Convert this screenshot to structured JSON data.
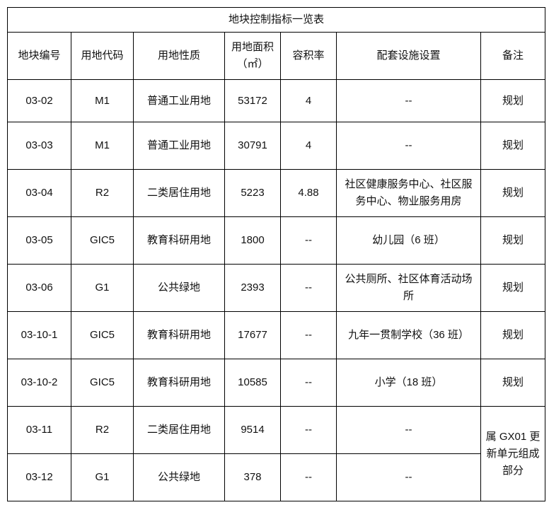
{
  "title": "地块控制指标一览表",
  "headers": [
    "地块编号",
    "用地代码",
    "用地性质",
    "用地面积",
    "（㎡）",
    "容积率",
    "配套设施设置",
    "备注"
  ],
  "rows": [
    {
      "id": "03-02",
      "code": "M1",
      "nature": "普通工业用地",
      "area": "53172",
      "far": "4",
      "facilities": "--",
      "note": "规划"
    },
    {
      "id": "03-03",
      "code": "M1",
      "nature": "普通工业用地",
      "area": "30791",
      "far": "4",
      "facilities": "--",
      "note": "规划"
    },
    {
      "id": "03-04",
      "code": "R2",
      "nature": "二类居住用地",
      "area": "5223",
      "far": "4.88",
      "facilities": "社区健康服务中心、社区服务中心、物业服务用房",
      "note": "规划"
    },
    {
      "id": "03-05",
      "code": "GIC5",
      "nature": "教育科研用地",
      "area": "1800",
      "far": "--",
      "facilities": "幼儿园（6 班）",
      "note": "规划"
    },
    {
      "id": "03-06",
      "code": "G1",
      "nature": "公共绿地",
      "area": "2393",
      "far": "--",
      "facilities": "公共厕所、社区体育活动场所",
      "note": "规划"
    },
    {
      "id": "03-10-1",
      "code": "GIC5",
      "nature": "教育科研用地",
      "area": "17677",
      "far": "--",
      "facilities": "九年一贯制学校（36 班）",
      "note": "规划"
    },
    {
      "id": "03-10-2",
      "code": "GIC5",
      "nature": "教育科研用地",
      "area": "10585",
      "far": "--",
      "facilities": "小学（18 班）",
      "note": "规划"
    },
    {
      "id": "03-11",
      "code": "R2",
      "nature": "二类居住用地",
      "area": "9514",
      "far": "--",
      "facilities": "--",
      "note": "属 GX01 更新单元组成部分"
    },
    {
      "id": "03-12",
      "code": "G1",
      "nature": "公共绿地",
      "area": "378",
      "far": "--",
      "facilities": "--"
    }
  ]
}
